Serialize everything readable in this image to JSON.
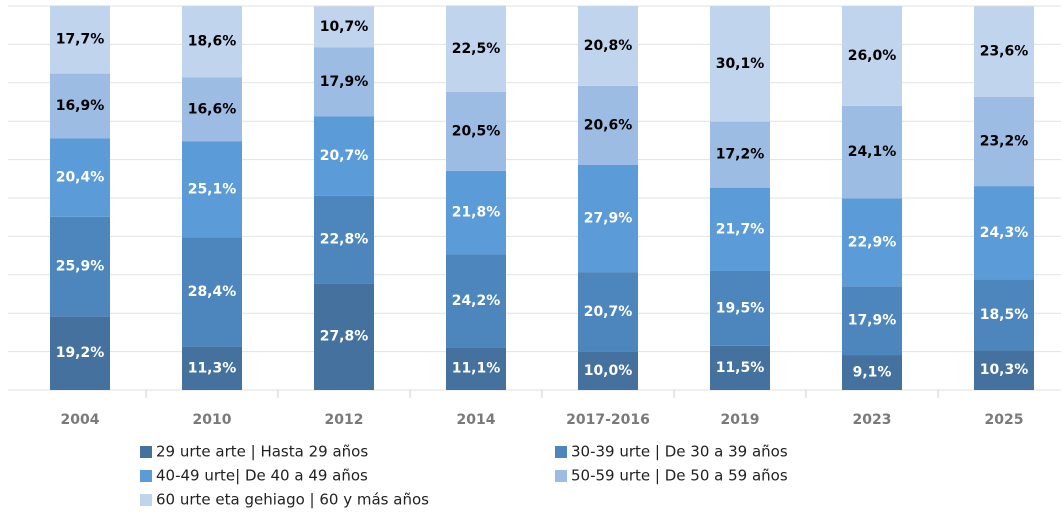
{
  "chart_data": {
    "type": "stacked_bar",
    "categories": [
      "2004",
      "2010",
      "2012",
      "2014",
      "2017-2016",
      "2019",
      "2023",
      "2025"
    ],
    "ylim": [
      0,
      100
    ],
    "yticks": [
      0,
      10,
      20,
      30,
      40,
      50,
      60,
      70,
      80,
      90,
      100
    ],
    "grid": true,
    "series": [
      {
        "name": "29 urte arte | Hasta 29 años",
        "color": "#44719e",
        "label_color": "#ffffff",
        "values": [
          19.2,
          11.3,
          27.8,
          11.1,
          10.0,
          11.5,
          9.1,
          10.3
        ],
        "value_labels": [
          "19,2%",
          "11,3%",
          "27,8%",
          "11,1%",
          "10,0%",
          "11,5%",
          "9,1%",
          "10,3%"
        ]
      },
      {
        "name": "30-39 urte | De 30 a 39 años",
        "color": "#4d86bd",
        "label_color": "#ffffff",
        "values": [
          25.9,
          28.4,
          22.8,
          24.2,
          20.7,
          19.5,
          17.9,
          18.5
        ],
        "value_labels": [
          "25,9%",
          "28,4%",
          "22,8%",
          "24,2%",
          "20,7%",
          "19,5%",
          "17,9%",
          "18,5%"
        ]
      },
      {
        "name": "40-49 urte| De 40 a 49 años",
        "color": "#5b9bd8",
        "label_color": "#ffffff",
        "values": [
          20.4,
          25.1,
          20.7,
          21.8,
          27.9,
          21.7,
          22.9,
          24.3
        ],
        "value_labels": [
          "20,4%",
          "25,1%",
          "20,7%",
          "21,8%",
          "27,9%",
          "21,7%",
          "22,9%",
          "24,3%"
        ]
      },
      {
        "name": "50-59 urte | De 50 a 59 años",
        "color": "#9dbce3",
        "label_color": "#000000",
        "values": [
          16.9,
          16.6,
          17.9,
          20.5,
          20.6,
          17.2,
          24.1,
          23.2
        ],
        "value_labels": [
          "16,9%",
          "16,6%",
          "17,9%",
          "20,5%",
          "20,6%",
          "17,2%",
          "24,1%",
          "23,2%"
        ]
      },
      {
        "name": "60 urte eta gehiago | 60 y más años",
        "color": "#c0d4ee",
        "label_color": "#000000",
        "values": [
          17.7,
          18.6,
          10.7,
          22.5,
          20.8,
          30.1,
          26.0,
          23.6
        ],
        "value_labels": [
          "17,7%",
          "18,6%",
          "10,7%",
          "22,5%",
          "20,8%",
          "30,1%",
          "26,0%",
          "23,6%"
        ]
      }
    ]
  }
}
